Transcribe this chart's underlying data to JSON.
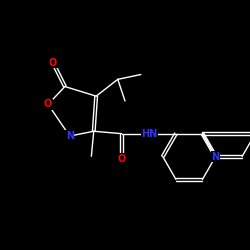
{
  "background_color": "#000000",
  "bond_color": "#ffffff",
  "atom_colors": {
    "O": "#ff0000",
    "N": "#3333ff",
    "C": "#ffffff",
    "H": "#ffffff"
  },
  "figsize": [
    2.5,
    2.5
  ],
  "dpi": 100,
  "lw": 1.0,
  "fs": 7.0
}
